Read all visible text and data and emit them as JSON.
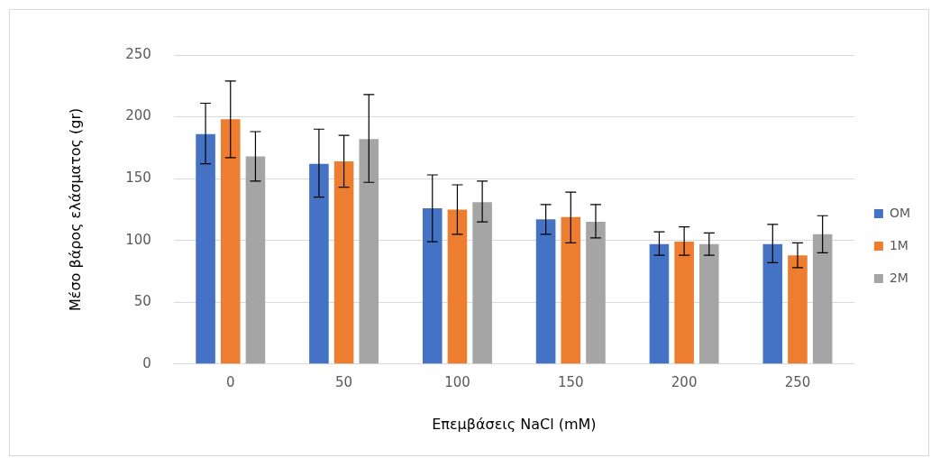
{
  "chart_data": {
    "type": "bar",
    "xlabel": "Επεμβάσεις NaCl (mM)",
    "ylabel": "Μέσο βάρος ελάσματος (gr)",
    "categories": [
      "0",
      "50",
      "100",
      "150",
      "200",
      "250"
    ],
    "series": [
      {
        "name": "OM",
        "color": "#4472c4",
        "values": [
          186,
          162,
          126,
          117,
          97,
          97
        ],
        "errors": [
          [
            162,
            211
          ],
          [
            135,
            190
          ],
          [
            99,
            153
          ],
          [
            105,
            129
          ],
          [
            88,
            107
          ],
          [
            82,
            113
          ]
        ]
      },
      {
        "name": "1M",
        "color": "#ed7d31",
        "values": [
          198,
          164,
          125,
          119,
          99,
          88
        ],
        "errors": [
          [
            167,
            229
          ],
          [
            143,
            185
          ],
          [
            105,
            145
          ],
          [
            98,
            139
          ],
          [
            88,
            111
          ],
          [
            78,
            98
          ]
        ]
      },
      {
        "name": "2M",
        "color": "#a5a5a5",
        "values": [
          168,
          182,
          131,
          115,
          97,
          105
        ],
        "errors": [
          [
            148,
            188
          ],
          [
            147,
            218
          ],
          [
            115,
            148
          ],
          [
            102,
            129
          ],
          [
            88,
            106
          ],
          [
            90,
            120
          ]
        ]
      }
    ],
    "ylim": [
      0,
      250
    ],
    "yticks": [
      0,
      50,
      100,
      150,
      200,
      250
    ],
    "grid": "y",
    "legend": "right"
  }
}
